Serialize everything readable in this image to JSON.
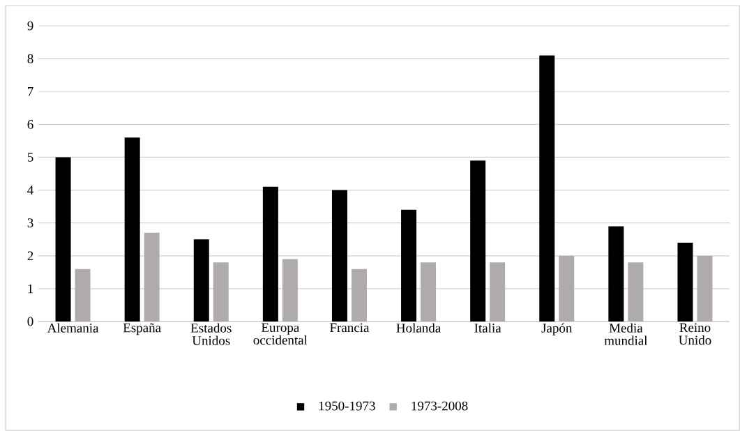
{
  "chart_data": {
    "type": "bar",
    "categories": [
      "Alemania",
      "España",
      "Estados Unidos",
      "Europa occidental",
      "Francia",
      "Holanda",
      "Italia",
      "Japón",
      "Media mundial",
      "Reino Unido"
    ],
    "series": [
      {
        "name": "1950-1973",
        "color": "#000000",
        "values": [
          5.0,
          5.6,
          2.5,
          4.1,
          4.0,
          3.4,
          4.9,
          8.1,
          2.9,
          2.4
        ]
      },
      {
        "name": "1973-2008",
        "color": "#afabab",
        "values": [
          1.6,
          2.7,
          1.8,
          1.9,
          1.6,
          1.8,
          1.8,
          2.0,
          1.8,
          2.0
        ]
      }
    ],
    "ylim": [
      0,
      9
    ],
    "yticks": [
      0,
      1,
      2,
      3,
      4,
      5,
      6,
      7,
      8,
      9
    ],
    "grid": "y",
    "legend": "bottom"
  }
}
